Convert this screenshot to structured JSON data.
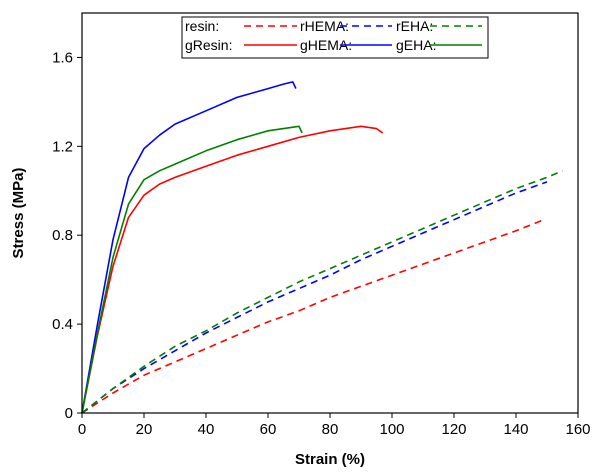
{
  "chart_data": {
    "type": "line",
    "xlabel": "Strain (%)",
    "ylabel": "Stress (MPa)",
    "xlim": [
      0,
      160
    ],
    "ylim": [
      0,
      1.8
    ],
    "xticks": [
      0,
      20,
      40,
      60,
      80,
      100,
      120,
      140,
      160
    ],
    "yticks": [
      0,
      0.4,
      0.8,
      1.2,
      1.6
    ],
    "ytick_labels": [
      "0",
      "0.4",
      "0.8",
      "1.2",
      "1.6"
    ],
    "grid": false,
    "legend": {
      "placement": "top-center",
      "rows": [
        {
          "label": "resin:",
          "entries": [
            {
              "label": "rHEMA:",
              "series": "rHEMA"
            },
            {
              "label": "rEHA:",
              "series": "rEHA"
            },
            {
              "label": "",
              "series": "rResin"
            }
          ]
        },
        {
          "label": "gResin:",
          "entries": [
            {
              "label": "gHEMA:",
              "series": "gResin"
            },
            {
              "label": "gEHA:",
              "series": "gHEMA"
            },
            {
              "label": "",
              "series": "gEHA"
            }
          ]
        }
      ]
    },
    "series": [
      {
        "id": "rHEMA",
        "color": "#ff0000",
        "dash": true,
        "x": [
          0,
          10,
          20,
          30,
          40,
          50,
          60,
          70,
          80,
          90,
          100,
          110,
          120,
          130,
          140,
          149
        ],
        "y": [
          0,
          0.09,
          0.17,
          0.23,
          0.29,
          0.35,
          0.41,
          0.46,
          0.52,
          0.57,
          0.62,
          0.67,
          0.72,
          0.77,
          0.82,
          0.87
        ]
      },
      {
        "id": "rEHA",
        "color": "#0000ff",
        "dash": true,
        "x": [
          0,
          10,
          20,
          30,
          40,
          50,
          60,
          70,
          80,
          90,
          100,
          110,
          120,
          130,
          140,
          150
        ],
        "y": [
          0,
          0.11,
          0.2,
          0.28,
          0.36,
          0.43,
          0.5,
          0.56,
          0.62,
          0.69,
          0.75,
          0.81,
          0.87,
          0.93,
          0.99,
          1.04
        ]
      },
      {
        "id": "rResin",
        "color": "#008000",
        "dash": true,
        "x": [
          0,
          10,
          20,
          30,
          40,
          50,
          60,
          70,
          80,
          90,
          100,
          110,
          120,
          130,
          140,
          150,
          155
        ],
        "y": [
          0,
          0.11,
          0.21,
          0.3,
          0.37,
          0.45,
          0.52,
          0.59,
          0.65,
          0.71,
          0.77,
          0.83,
          0.89,
          0.95,
          1.01,
          1.06,
          1.09
        ]
      },
      {
        "id": "gResin",
        "color": "#ff0000",
        "dash": false,
        "x": [
          0,
          5,
          10,
          15,
          20,
          25,
          30,
          40,
          50,
          60,
          70,
          80,
          90,
          95,
          97
        ],
        "y": [
          0,
          0.35,
          0.66,
          0.88,
          0.98,
          1.03,
          1.06,
          1.11,
          1.16,
          1.2,
          1.24,
          1.27,
          1.29,
          1.28,
          1.26
        ]
      },
      {
        "id": "gHEMA",
        "color": "#0000ff",
        "dash": false,
        "x": [
          0,
          5,
          10,
          15,
          20,
          25,
          30,
          40,
          50,
          60,
          65,
          68,
          69
        ],
        "y": [
          0,
          0.4,
          0.78,
          1.06,
          1.19,
          1.25,
          1.3,
          1.36,
          1.42,
          1.46,
          1.48,
          1.49,
          1.46
        ]
      },
      {
        "id": "gEHA",
        "color": "#008000",
        "dash": false,
        "x": [
          0,
          5,
          10,
          15,
          20,
          25,
          30,
          40,
          50,
          60,
          65,
          70,
          71
        ],
        "y": [
          0,
          0.36,
          0.7,
          0.94,
          1.05,
          1.09,
          1.12,
          1.18,
          1.23,
          1.27,
          1.28,
          1.29,
          1.26
        ]
      }
    ]
  }
}
